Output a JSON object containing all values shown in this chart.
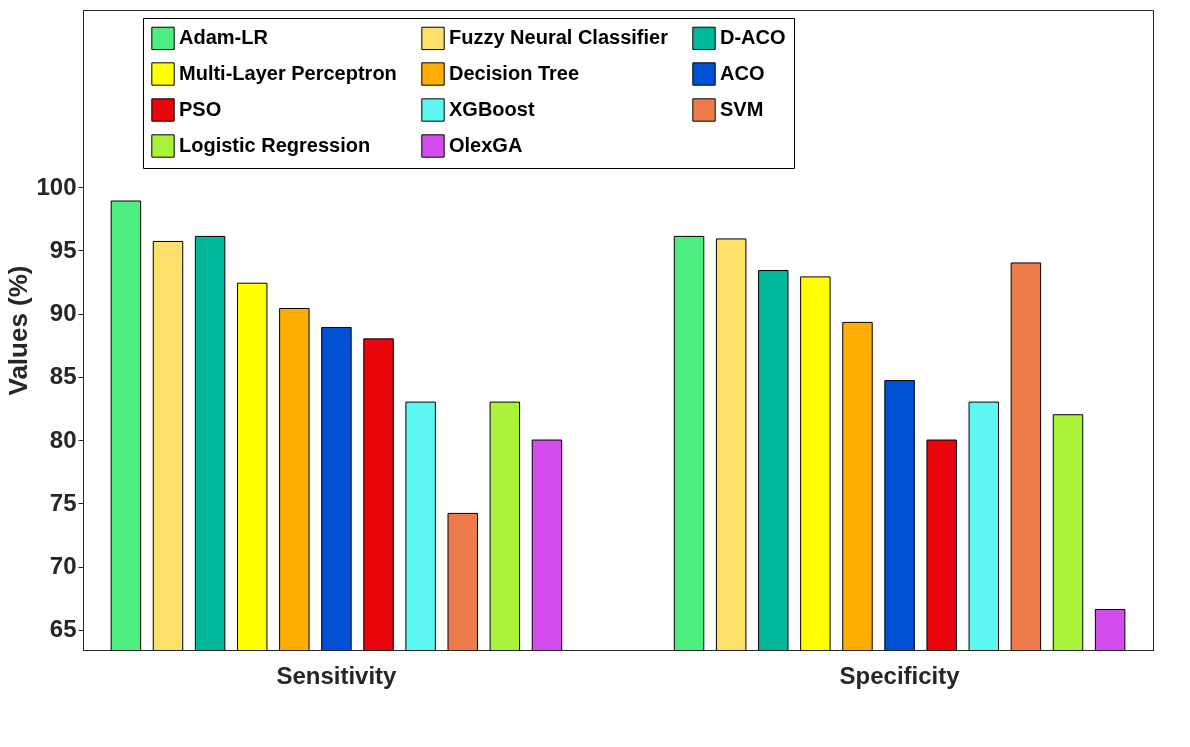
{
  "chart_data": {
    "type": "bar",
    "ylabel": "Values (%)",
    "categories": [
      "Sensitivity",
      "Specificity"
    ],
    "series": [
      {
        "name": "Adam-LR",
        "color": "#4ded80",
        "values": [
          98.9,
          96.1
        ]
      },
      {
        "name": "Fuzzy Neural Classifier",
        "color": "#fce06b",
        "values": [
          95.7,
          95.9
        ]
      },
      {
        "name": "D-ACO",
        "color": "#00b899",
        "values": [
          96.1,
          93.4
        ]
      },
      {
        "name": "Multi-Layer Perceptron",
        "color": "#ffff00",
        "values": [
          92.4,
          92.9
        ]
      },
      {
        "name": "Decision Tree",
        "color": "#ffae00",
        "values": [
          90.4,
          89.3
        ]
      },
      {
        "name": "ACO",
        "color": "#0050d4",
        "values": [
          88.9,
          84.7
        ]
      },
      {
        "name": "PSO",
        "color": "#e8060c",
        "values": [
          88.0,
          80.0
        ]
      },
      {
        "name": "XGBoost",
        "color": "#5cf7f2",
        "values": [
          83.0,
          83.0
        ]
      },
      {
        "name": "SVM",
        "color": "#ee7b4c",
        "values": [
          74.2,
          94.0
        ]
      },
      {
        "name": "Logistic Regression",
        "color": "#aaf23a",
        "values": [
          83.0,
          82.0
        ]
      },
      {
        "name": "OlexGA",
        "color": "#d24deb",
        "values": [
          80.0,
          66.6
        ]
      }
    ],
    "ylim": [
      63.4,
      114
    ],
    "yticks": [
      65,
      70,
      75,
      80,
      85,
      90,
      95,
      100
    ],
    "grid": false,
    "legend": "top"
  }
}
